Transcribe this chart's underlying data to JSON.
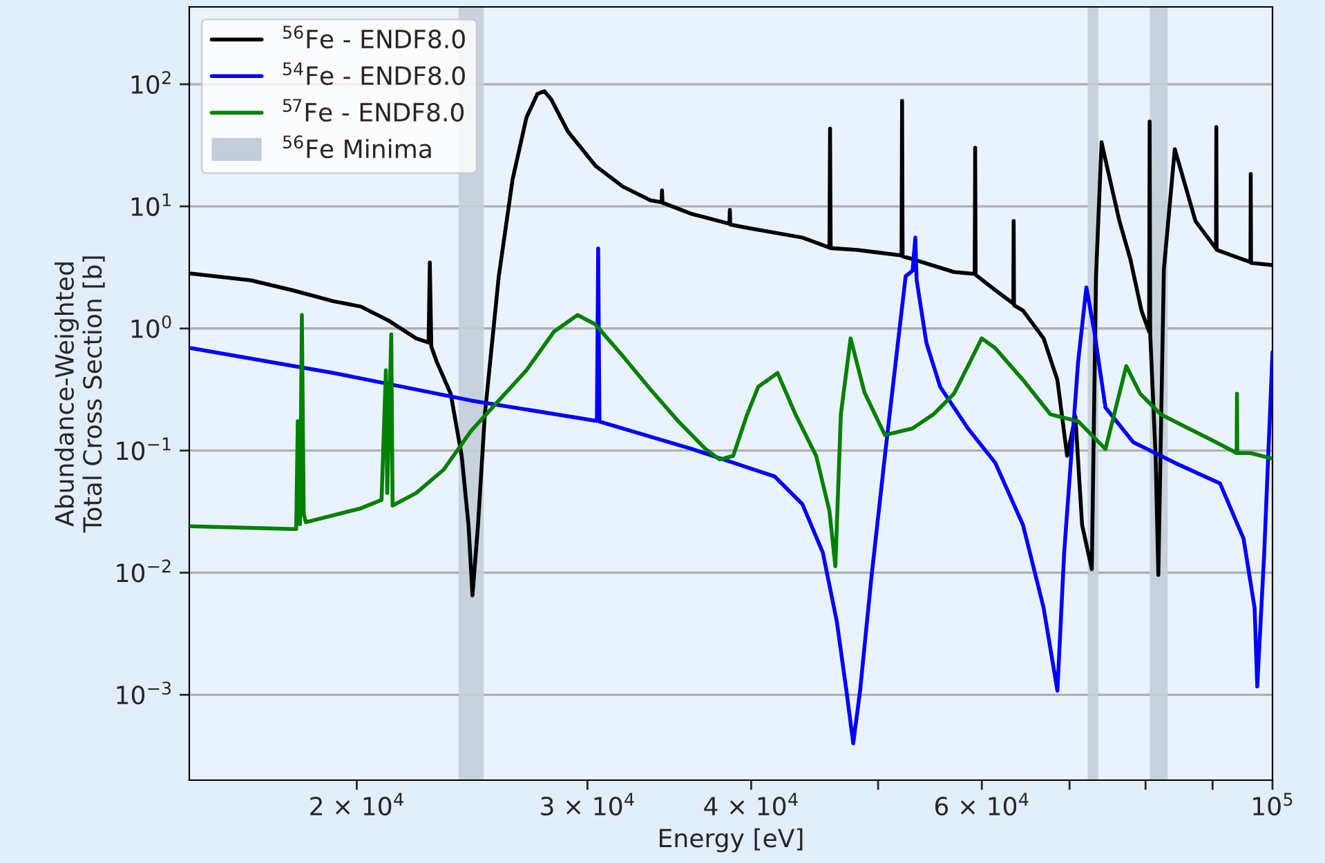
{
  "chart_data": {
    "type": "line",
    "xlabel": "Energy [eV]",
    "ylabel": "Abundance-Weighted\nTotal Cross Section [b]",
    "log": "xy",
    "xlim": [
      14900,
      100000
    ],
    "ylim": [
      0.0002,
      430
    ],
    "xticks": [
      {
        "value": 20000,
        "label": "2 × 10$^{4}$"
      },
      {
        "value": 30000,
        "label": "3 × 10$^{4}$"
      },
      {
        "value": 40000,
        "label": "4 × 10$^{4}$"
      },
      {
        "value": 50000,
        "label": null
      },
      {
        "value": 60000,
        "label": "6 × 10$^{4}$"
      },
      {
        "value": 70000,
        "label": null
      },
      {
        "value": 80000,
        "label": null
      },
      {
        "value": 90000,
        "label": null
      },
      {
        "value": 100000,
        "label": "10$^{5}$"
      }
    ],
    "yticks": [
      {
        "value": 0.001,
        "label": "10$^{−3}$"
      },
      {
        "value": 0.01,
        "label": "10$^{−2}$"
      },
      {
        "value": 0.1,
        "label": "10$^{−1}$"
      },
      {
        "value": 1,
        "label": "10$^{0}$"
      },
      {
        "value": 10,
        "label": "10$^{1}$"
      },
      {
        "value": 100,
        "label": "10$^{2}$"
      }
    ],
    "grid": "y",
    "legend": "top left",
    "line_style": "solid",
    "marker": "none",
    "bands": [
      {
        "axis": "x",
        "from": 23920,
        "to": 25000,
        "label": "$^{56}$Fe Minima",
        "color": "#c4ced8"
      },
      {
        "axis": "x",
        "from": 72270,
        "to": 73630,
        "color": "#c4ced8"
      },
      {
        "axis": "x",
        "from": 80600,
        "to": 83180,
        "color": "#c4ced8"
      }
    ],
    "series": [
      {
        "name": "$^{56}$Fe - ENDF8.0",
        "color": "#000000",
        "x": [
          14950,
          16600,
          17850,
          19200,
          20150,
          21150,
          22200,
          22690,
          22740,
          22800,
          23020,
          23590,
          24050,
          24340,
          24510,
          24750,
          25050,
          25670,
          26300,
          26950,
          27470,
          27810,
          28150,
          28980,
          30420,
          31930,
          33520,
          34170,
          34200,
          34230,
          36060,
          38500,
          38530,
          38560,
          39720,
          43770,
          45900,
          45950,
          46000,
          48200,
          52100,
          52150,
          52200,
          53120,
          57130,
          59250,
          59300,
          59350,
          61430,
          63410,
          63450,
          63490,
          64500,
          66880,
          68520,
          69700,
          70720,
          71560,
          72790,
          73330,
          74050,
          74940,
          76410,
          77910,
          79430,
          80500,
          80580,
          80660,
          81430,
          81820,
          82620,
          84220,
          85230,
          87330,
          90550,
          90600,
          90650,
          95040,
          96200,
          96250,
          96300,
          100000
        ],
        "values": [
          2.82,
          2.48,
          2.06,
          1.67,
          1.51,
          1.16,
          0.83,
          0.767,
          3.47,
          0.71,
          0.532,
          0.292,
          0.0906,
          0.0246,
          0.00652,
          0.0246,
          0.198,
          2.68,
          16.6,
          53.5,
          83.3,
          87.8,
          75.2,
          41.2,
          21.5,
          14.5,
          11.2,
          10.8,
          13.5,
          10.7,
          8.65,
          7.2,
          9.35,
          7.1,
          6.67,
          5.55,
          4.6,
          43.4,
          4.55,
          4.4,
          3.96,
          73.1,
          3.9,
          3.7,
          2.9,
          2.8,
          30.2,
          2.75,
          2.06,
          1.6,
          7.59,
          1.55,
          1.4,
          0.83,
          0.379,
          0.0906,
          0.19,
          0.0246,
          0.0107,
          2.68,
          33.5,
          18.9,
          7.59,
          3.66,
          1.4,
          0.944,
          49.5,
          0.9,
          0.0906,
          0.0096,
          3.05,
          29.4,
          18.9,
          7.59,
          4.51,
          44.6,
          4.4,
          3.66,
          3.5,
          18.4,
          3.45,
          3.3
        ]
      },
      {
        "name": "$^{54}$Fe - ENDF8.0",
        "color": "#0000ff",
        "x": [
          14950,
          19200,
          24450,
          30500,
          30570,
          30640,
          36060,
          41690,
          43770,
          45370,
          46500,
          47290,
          47860,
          48440,
          49390,
          50600,
          51600,
          52480,
          53120,
          53380,
          53500,
          54430,
          55760,
          58550,
          61430,
          64500,
          66880,
          68520,
          69340,
          71060,
          72100,
          73130,
          74560,
          78290,
          84220,
          91200,
          95040,
          96900,
          97360,
          98560,
          100000
        ],
        "values": [
          0.69,
          0.432,
          0.257,
          0.175,
          4.51,
          0.173,
          0.103,
          0.0613,
          0.0364,
          0.0146,
          0.00398,
          0.00108,
          0.0004,
          0.00108,
          0.0087,
          0.0906,
          0.561,
          2.68,
          2.97,
          5.55,
          2.5,
          0.762,
          0.333,
          0.152,
          0.0794,
          0.0246,
          0.00516,
          0.00108,
          0.0146,
          0.532,
          2.17,
          0.929,
          0.225,
          0.117,
          0.0794,
          0.0538,
          0.019,
          0.00516,
          0.00117,
          0.0146,
          0.638
        ]
      },
      {
        "name": "$^{57}$Fe - ENDF8.0",
        "color": "#008000",
        "x": [
          14950,
          17850,
          17980,
          18030,
          18100,
          18160,
          18220,
          18290,
          20150,
          20890,
          21050,
          21100,
          21250,
          21300,
          22200,
          23300,
          24450,
          25670,
          26950,
          28290,
          29480,
          30420,
          31930,
          33520,
          35190,
          36920,
          37840,
          38760,
          39720,
          40500,
          41900,
          43240,
          44840,
          45900,
          46380,
          46830,
          47640,
          48810,
          50600,
          53120,
          55100,
          57130,
          58550,
          59980,
          61430,
          64500,
          67690,
          71060,
          74560,
          77340,
          79250,
          82180,
          86270,
          90550,
          93890,
          93950,
          94000,
          96200,
          100000
        ],
        "values": [
          0.024,
          0.0228,
          0.0228,
          0.174,
          0.025,
          1.29,
          0.03,
          0.0259,
          0.0337,
          0.0394,
          0.455,
          0.045,
          0.895,
          0.0355,
          0.0449,
          0.0698,
          0.145,
          0.257,
          0.455,
          0.944,
          1.29,
          1.08,
          0.592,
          0.316,
          0.174,
          0.103,
          0.0845,
          0.0906,
          0.198,
          0.333,
          0.432,
          0.198,
          0.0906,
          0.032,
          0.0113,
          0.198,
          0.83,
          0.3,
          0.134,
          0.152,
          0.198,
          0.292,
          0.492,
          0.83,
          0.69,
          0.379,
          0.198,
          0.174,
          0.103,
          0.492,
          0.292,
          0.198,
          0.152,
          0.117,
          0.0954,
          0.292,
          0.0954,
          0.0954,
          0.0859
        ]
      }
    ]
  }
}
